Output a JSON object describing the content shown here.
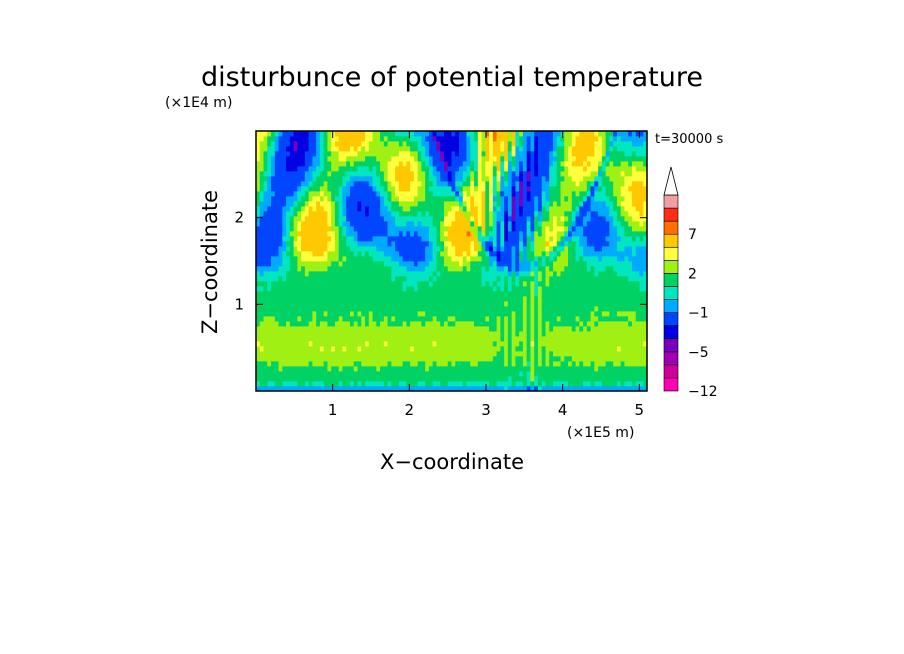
{
  "chart_data": {
    "type": "heatmap",
    "title": "disturbunce of potential temperature",
    "xlabel": "X−coordinate",
    "ylabel": "Z−coordinate",
    "x_unit": "(×1E5 m)",
    "y_unit": "(×1E4 m)",
    "time_label": "t=30000 s",
    "xlim": [
      0,
      5.1
    ],
    "ylim": [
      0,
      3.0
    ],
    "x_ticks": [
      {
        "value": 1,
        "label": "1"
      },
      {
        "value": 2,
        "label": "2"
      },
      {
        "value": 3,
        "label": "3"
      },
      {
        "value": 4,
        "label": "4"
      },
      {
        "value": 5,
        "label": "5"
      }
    ],
    "y_ticks": [
      {
        "value": 1,
        "label": "1"
      },
      {
        "value": 2,
        "label": "2"
      }
    ],
    "colorbar": {
      "levels": [
        -12,
        -10,
        -7,
        -5,
        -4,
        -2,
        -1,
        0,
        1,
        2,
        3,
        5,
        7,
        8,
        9
      ],
      "labels": [
        {
          "value": 7,
          "label": "7"
        },
        {
          "value": 2,
          "label": "2"
        },
        {
          "value": -1,
          "label": "−1"
        },
        {
          "value": -5,
          "label": "−5"
        },
        {
          "value": -12,
          "label": "−12"
        }
      ],
      "colors": [
        "#ff00b4",
        "#d2009b",
        "#a000b4",
        "#7800be",
        "#0000e1",
        "#0046ff",
        "#00aaff",
        "#00e6be",
        "#00d264",
        "#a0f014",
        "#ffff3c",
        "#ffc800",
        "#ff6e00",
        "#ff2d14",
        "#f0a0a0",
        "#ffffff"
      ]
    },
    "grid": false,
    "legend_position": "right"
  }
}
